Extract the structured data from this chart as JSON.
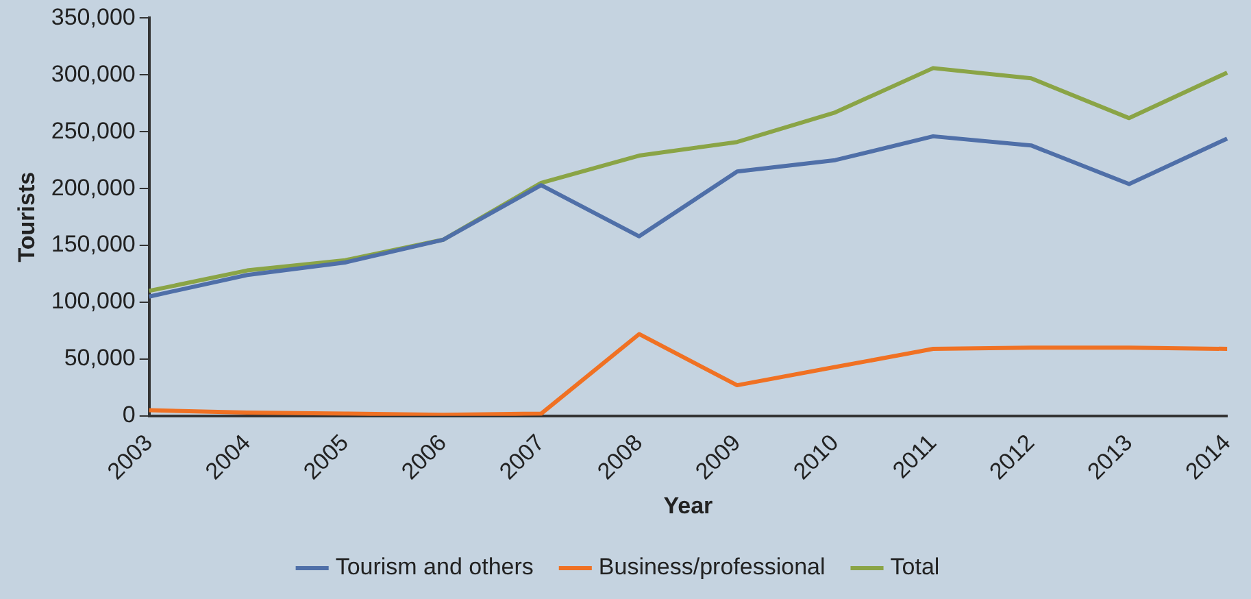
{
  "chart_data": {
    "type": "line",
    "xlabel": "Year",
    "ylabel": "Tourists",
    "categories": [
      "2003",
      "2004",
      "2005",
      "2006",
      "2007",
      "2008",
      "2009",
      "2010",
      "2011",
      "2012",
      "2013",
      "2014"
    ],
    "series": [
      {
        "name": "Tourism and others",
        "color": "#4f6fa8",
        "values": [
          105000,
          124000,
          135000,
          155000,
          203000,
          158000,
          215000,
          225000,
          246000,
          238000,
          204000,
          244000
        ]
      },
      {
        "name": "Business/professional",
        "color": "#f07123",
        "values": [
          5000,
          3000,
          2000,
          1000,
          2000,
          72000,
          27000,
          43000,
          59000,
          60000,
          60000,
          59000
        ]
      },
      {
        "name": "Total",
        "color": "#8aa446",
        "values": [
          110000,
          128000,
          137000,
          155000,
          205000,
          229000,
          241000,
          267000,
          306000,
          297000,
          262000,
          302000
        ]
      }
    ],
    "ylim": [
      0,
      350000
    ],
    "yticks": [
      {
        "value": 0,
        "label": "0"
      },
      {
        "value": 50000,
        "label": "50,000"
      },
      {
        "value": 100000,
        "label": "100,000"
      },
      {
        "value": 150000,
        "label": "150,000"
      },
      {
        "value": 200000,
        "label": "200,000"
      },
      {
        "value": 250000,
        "label": "250,000"
      },
      {
        "value": 300000,
        "label": "300,000"
      },
      {
        "value": 350000,
        "label": "350,000"
      }
    ],
    "grid": false,
    "legend": "bottom",
    "marker": "none",
    "line_style": "solid"
  }
}
